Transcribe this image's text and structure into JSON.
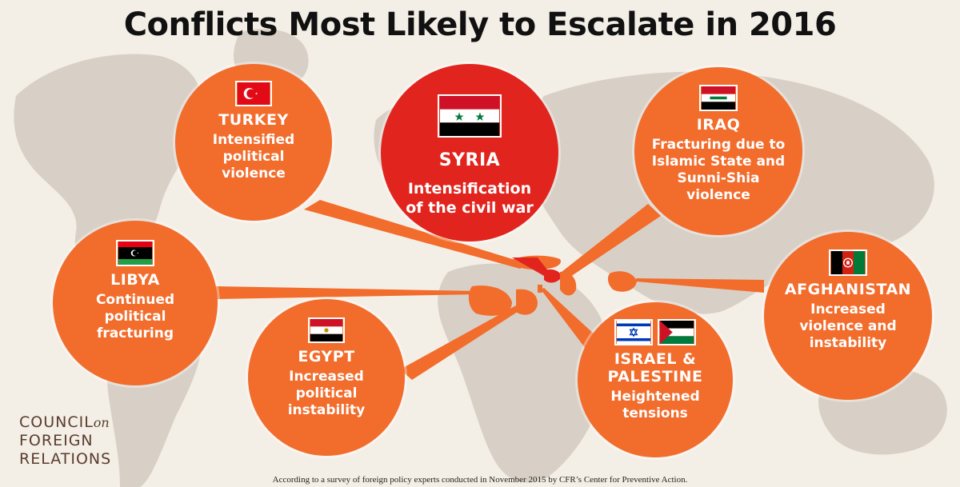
{
  "title": "Conflicts Most Likely to Escalate in 2016",
  "colors": {
    "background": "#f4efe6",
    "land": "#d8d0c6",
    "circle": "#f26c2c",
    "primary_circle": "#e2241e"
  },
  "conflicts": [
    {
      "id": "syria",
      "country": "SYRIA",
      "description": "Intensification\nof the civil war",
      "priority": "primary",
      "flag": "syria-flag"
    },
    {
      "id": "turkey",
      "country": "TURKEY",
      "description": "Intensified\npolitical\nviolence",
      "flag": "turkey-flag"
    },
    {
      "id": "iraq",
      "country": "IRAQ",
      "description": "Fracturing due to\nIslamic State and\nSunni-Shia\nviolence",
      "flag": "iraq-flag"
    },
    {
      "id": "libya",
      "country": "LIBYA",
      "description": "Continued\npolitical\nfracturing",
      "flag": "libya-flag"
    },
    {
      "id": "afghanistan",
      "country": "AFGHANISTAN",
      "description": "Increased\nviolence and\ninstability",
      "flag": "afghanistan-flag"
    },
    {
      "id": "egypt",
      "country": "EGYPT",
      "description": "Increased\npolitical\ninstability",
      "flag": "egypt-flag"
    },
    {
      "id": "israel_palestine",
      "country": "ISRAEL &\nPALESTINE",
      "description": "Heightened\ntensions",
      "flags": [
        "israel-flag",
        "palestine-flag"
      ]
    }
  ],
  "logo": {
    "line1": "COUNCIL",
    "line1_suffix": "on",
    "line2": "FOREIGN",
    "line3": "RELATIONS"
  },
  "footnote": "According to a survey of foreign policy experts conducted in November 2015 by CFR’s Center for Preventive Action."
}
